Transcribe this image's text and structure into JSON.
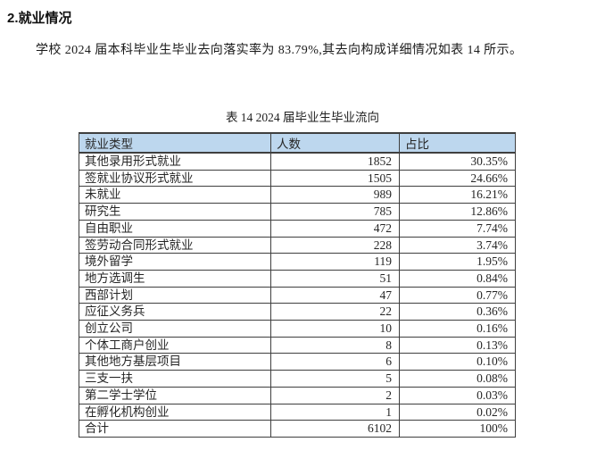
{
  "document": {
    "section_title": "2.就业情况",
    "paragraph": "学校 2024 届本科毕业生毕业去向落实率为 83.79%,其去向构成详细情况如表 14 所示。",
    "table_caption": "表 14 2024 届毕业生毕业流向"
  },
  "colors": {
    "header_bg": "#BDD7EE",
    "table_border": "#3F3F3F",
    "text": "#1F1F1F"
  },
  "chart_data": {
    "type": "table",
    "title": "表 14 2024 届毕业生毕业流向",
    "columns": [
      "就业类型",
      "人数",
      "占比"
    ],
    "rows": [
      [
        "其他录用形式就业",
        "1852",
        "30.35%"
      ],
      [
        "签就业协议形式就业",
        "1505",
        "24.66%"
      ],
      [
        "未就业",
        "989",
        "16.21%"
      ],
      [
        "研究生",
        "785",
        "12.86%"
      ],
      [
        "自由职业",
        "472",
        "7.74%"
      ],
      [
        "签劳动合同形式就业",
        "228",
        "3.74%"
      ],
      [
        "境外留学",
        "119",
        "1.95%"
      ],
      [
        "地方选调生",
        "51",
        "0.84%"
      ],
      [
        "西部计划",
        "47",
        "0.77%"
      ],
      [
        "应征义务兵",
        "22",
        "0.36%"
      ],
      [
        "创立公司",
        "10",
        "0.16%"
      ],
      [
        "个体工商户创业",
        "8",
        "0.13%"
      ],
      [
        "其他地方基层项目",
        "6",
        "0.10%"
      ],
      [
        "三支一扶",
        "5",
        "0.08%"
      ],
      [
        "第二学士学位",
        "2",
        "0.03%"
      ],
      [
        "在孵化机构创业",
        "1",
        "0.02%"
      ],
      [
        "合计",
        "6102",
        "100%"
      ]
    ]
  }
}
